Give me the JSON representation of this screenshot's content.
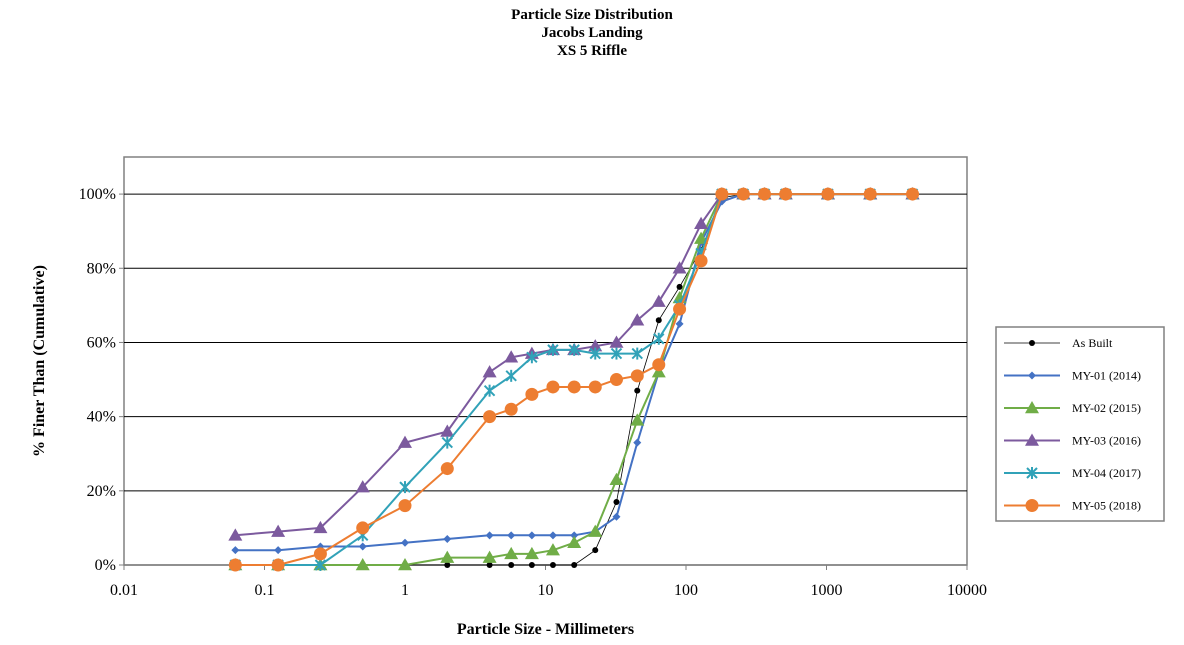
{
  "chart_data": {
    "type": "line",
    "title": "Particle Size Distribution",
    "subtitle": [
      "Jacobs Landing",
      "XS 5 Riffle"
    ],
    "xlabel": "Particle Size - Millimeters",
    "ylabel": "% Finer Than (Cumulative)",
    "x_scale": "log",
    "xlim": [
      0.01,
      10000
    ],
    "ylim": [
      0,
      110
    ],
    "x_ticks": [
      "0.01",
      "0.1",
      "1",
      "10",
      "100",
      "1000",
      "10000"
    ],
    "y_ticks": [
      "0%",
      "20%",
      "40%",
      "60%",
      "80%",
      "100%"
    ],
    "y_tick_values": [
      0,
      20,
      40,
      60,
      80,
      100
    ],
    "grid": "horizontal",
    "legend_position": "right",
    "x": [
      0.062,
      0.125,
      0.25,
      0.5,
      1,
      2,
      4,
      5.7,
      8,
      11.3,
      16,
      22.6,
      32,
      45,
      64,
      90,
      128,
      180,
      256,
      362,
      512,
      1024,
      2048,
      4096
    ],
    "series": [
      {
        "name": "As Built",
        "color": "#000000",
        "marker": "dot",
        "line_width": 0.8,
        "values": [
          0,
          0,
          0,
          0,
          0,
          0,
          0,
          0,
          0,
          0,
          0,
          4,
          17,
          47,
          66,
          75,
          85,
          99,
          100,
          100,
          100,
          100,
          100,
          100
        ]
      },
      {
        "name": "MY-01 (2014)",
        "color": "#4472c4",
        "marker": "diamond",
        "line_width": 2,
        "values": [
          4,
          4,
          5,
          5,
          6,
          7,
          8,
          8,
          8,
          8,
          8,
          9,
          13,
          33,
          52,
          65,
          87,
          98,
          100,
          100,
          100,
          100,
          100,
          100
        ]
      },
      {
        "name": "MY-02 (2015)",
        "color": "#70ad47",
        "marker": "triangle",
        "line_width": 2,
        "values": [
          0,
          0,
          0,
          0,
          0,
          2,
          2,
          3,
          3,
          4,
          6,
          9,
          23,
          39,
          52,
          72,
          88,
          100,
          100,
          100,
          100,
          100,
          100,
          100
        ]
      },
      {
        "name": "MY-03 (2016)",
        "color": "#7c5a9e",
        "marker": "triangle",
        "line_width": 2,
        "values": [
          8,
          9,
          10,
          21,
          33,
          36,
          52,
          56,
          57,
          58,
          58,
          59,
          60,
          66,
          71,
          80,
          92,
          100,
          100,
          100,
          100,
          100,
          100,
          100
        ]
      },
      {
        "name": "MY-04 (2017)",
        "color": "#31a2b8",
        "marker": "star",
        "line_width": 2,
        "values": [
          0,
          0,
          0,
          8,
          21,
          33,
          47,
          51,
          56,
          58,
          58,
          57,
          57,
          57,
          61,
          70,
          84,
          100,
          100,
          100,
          100,
          100,
          100,
          100
        ]
      },
      {
        "name": "MY-05 (2018)",
        "color": "#ed7d31",
        "marker": "circle",
        "line_width": 2,
        "values": [
          0,
          0,
          3,
          10,
          16,
          26,
          40,
          42,
          46,
          48,
          48,
          48,
          50,
          51,
          54,
          69,
          82,
          100,
          100,
          100,
          100,
          100,
          100,
          100
        ]
      }
    ]
  }
}
